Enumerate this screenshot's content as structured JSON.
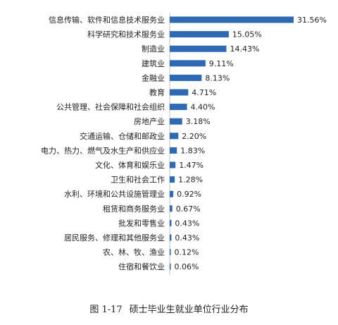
{
  "chart_data": {
    "type": "bar",
    "orientation": "horizontal",
    "categories": [
      "信息传输、软件和信息技术服务业",
      "科学研究和技术服务业",
      "制造业",
      "建筑业",
      "金融业",
      "教育",
      "公共管理、社会保障和社会组织",
      "房地产业",
      "交通运输、仓储和邮政业",
      "电力、热力、燃气及水生产和供应业",
      "文化、体育和娱乐业",
      "卫生和社会工作",
      "水利、环境和公共设施管理业",
      "租赁和商务服务业",
      "批发和零售业",
      "居民服务、修理和其他服务业",
      "农、林、牧、渔业",
      "住宿和餐饮业"
    ],
    "values": [
      31.56,
      15.05,
      14.43,
      9.11,
      8.13,
      4.71,
      4.4,
      3.18,
      2.2,
      1.83,
      1.47,
      1.28,
      0.92,
      0.67,
      0.43,
      0.43,
      0.12,
      0.06
    ],
    "value_labels": [
      "31.56%",
      "15.05%",
      "14.43%",
      "9.11%",
      "8.13%",
      "4.71%",
      "4.40%",
      "3.18%",
      "2.20%",
      "1.83%",
      "1.47%",
      "1.28%",
      "0.92%",
      "0.67%",
      "0.43%",
      "0.43%",
      "0.12%",
      "0.06%"
    ],
    "unit": "%",
    "xlim": [
      0,
      32
    ],
    "grid": false,
    "legend": "none",
    "bar_color": "#2e6ab3"
  },
  "caption": {
    "figure_number": "图 1-17",
    "title": "硕士毕业生就业单位行业分布"
  }
}
